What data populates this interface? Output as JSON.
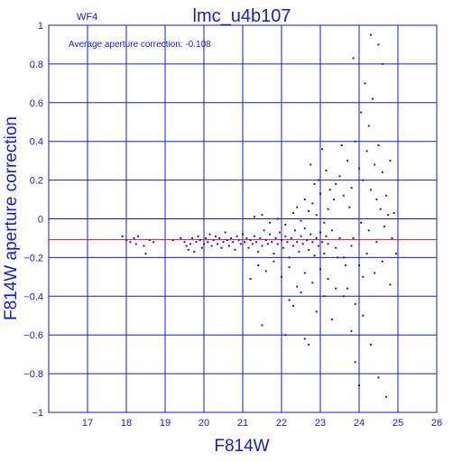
{
  "chart_data": {
    "type": "scatter",
    "title": "lmc_u4b107",
    "panel_label": "WF4",
    "annotation": "Average aperture correction: -0.108",
    "xlabel": "F814W",
    "ylabel": "F814W aperture correction",
    "xlim": [
      16,
      26
    ],
    "ylim": [
      -1,
      1
    ],
    "xticks": [
      17,
      18,
      19,
      20,
      21,
      22,
      23,
      24,
      25,
      26
    ],
    "yticks": [
      -1,
      -0.8,
      -0.6,
      -0.4,
      -0.2,
      0,
      0.2,
      0.4,
      0.6,
      0.8,
      1
    ],
    "xtick_labels": [
      "17",
      "18",
      "19",
      "20",
      "21",
      "22",
      "23",
      "24",
      "25",
      "26"
    ],
    "ytick_labels": [
      "−1",
      "−0.8",
      "−0.6",
      "−0.4",
      "−0.2",
      "0",
      "0.2",
      "0.4",
      "0.6",
      "0.8",
      "1"
    ],
    "grid": true,
    "reference_line": {
      "y": -0.108,
      "color": "#cc2222"
    },
    "point_color": "#1a1acd",
    "axis_color": "#1a1acd",
    "points": [
      [
        17.9,
        -0.09
      ],
      [
        18.0,
        -0.11
      ],
      [
        18.1,
        -0.12
      ],
      [
        18.2,
        -0.1
      ],
      [
        18.25,
        -0.13
      ],
      [
        18.3,
        -0.09
      ],
      [
        18.45,
        -0.14
      ],
      [
        18.5,
        -0.18
      ],
      [
        18.6,
        -0.11
      ],
      [
        18.7,
        -0.12
      ],
      [
        19.2,
        -0.11
      ],
      [
        19.4,
        -0.1
      ],
      [
        19.5,
        -0.12
      ],
      [
        19.55,
        -0.14
      ],
      [
        19.6,
        -0.16
      ],
      [
        19.65,
        -0.13
      ],
      [
        19.7,
        -0.1
      ],
      [
        19.75,
        -0.17
      ],
      [
        19.8,
        -0.12
      ],
      [
        19.85,
        -0.09
      ],
      [
        19.9,
        -0.11
      ],
      [
        19.95,
        -0.15
      ],
      [
        20.0,
        -0.13
      ],
      [
        20.05,
        -0.1
      ],
      [
        20.1,
        -0.12
      ],
      [
        20.15,
        -0.08
      ],
      [
        20.2,
        -0.14
      ],
      [
        20.25,
        -0.11
      ],
      [
        20.3,
        -0.09
      ],
      [
        20.35,
        -0.13
      ],
      [
        20.4,
        -0.1
      ],
      [
        20.45,
        -0.15
      ],
      [
        20.5,
        -0.12
      ],
      [
        20.55,
        -0.07
      ],
      [
        20.6,
        -0.11
      ],
      [
        20.65,
        -0.14
      ],
      [
        20.7,
        -0.1
      ],
      [
        20.75,
        -0.12
      ],
      [
        20.8,
        -0.16
      ],
      [
        20.85,
        -0.09
      ],
      [
        20.9,
        -0.11
      ],
      [
        20.95,
        -0.13
      ],
      [
        21.0,
        -0.08
      ],
      [
        21.05,
        -0.12
      ],
      [
        21.1,
        -0.1
      ],
      [
        21.15,
        -0.15
      ],
      [
        21.2,
        -0.11
      ],
      [
        21.25,
        -0.13
      ],
      [
        21.3,
        -0.09
      ],
      [
        21.35,
        -0.12
      ],
      [
        21.4,
        -0.17
      ],
      [
        21.45,
        -0.1
      ],
      [
        21.5,
        -0.14
      ],
      [
        21.55,
        -0.06
      ],
      [
        21.6,
        -0.11
      ],
      [
        21.65,
        -0.13
      ],
      [
        21.7,
        -0.08
      ],
      [
        21.75,
        -0.12
      ],
      [
        21.8,
        -0.18
      ],
      [
        21.85,
        -0.1
      ],
      [
        21.9,
        -0.13
      ],
      [
        21.95,
        -0.07
      ],
      [
        22.0,
        -0.11
      ],
      [
        22.05,
        -0.15
      ],
      [
        22.1,
        -0.09
      ],
      [
        22.15,
        -0.12
      ],
      [
        22.2,
        -0.2
      ],
      [
        22.25,
        -0.1
      ],
      [
        22.3,
        -0.14
      ],
      [
        22.35,
        -0.06
      ],
      [
        22.4,
        -0.12
      ],
      [
        22.45,
        -0.17
      ],
      [
        22.5,
        -0.09
      ],
      [
        22.55,
        -0.13
      ],
      [
        22.6,
        -0.05
      ],
      [
        22.65,
        -0.11
      ],
      [
        22.7,
        -0.16
      ],
      [
        22.75,
        -0.08
      ],
      [
        22.8,
        -0.12
      ],
      [
        22.85,
        -0.19
      ],
      [
        22.9,
        -0.1
      ],
      [
        22.95,
        -0.14
      ],
      [
        23.0,
        -0.07
      ],
      [
        23.05,
        -0.12
      ],
      [
        23.1,
        -0.18
      ],
      [
        23.15,
        -0.09
      ],
      [
        23.2,
        -0.13
      ],
      [
        23.3,
        -0.06
      ],
      [
        23.4,
        -0.15
      ],
      [
        23.5,
        -0.1
      ],
      [
        21.3,
        0.01
      ],
      [
        21.5,
        0.02
      ],
      [
        21.7,
        -0.02
      ],
      [
        21.9,
        0.0
      ],
      [
        22.1,
        -0.03
      ],
      [
        22.3,
        0.03
      ],
      [
        22.5,
        -0.01
      ],
      [
        22.7,
        0.04
      ],
      [
        22.9,
        0.02
      ],
      [
        23.1,
        -0.02
      ],
      [
        21.4,
        -0.24
      ],
      [
        21.6,
        -0.27
      ],
      [
        21.8,
        -0.22
      ],
      [
        22.0,
        -0.3
      ],
      [
        22.2,
        -0.25
      ],
      [
        22.4,
        -0.35
      ],
      [
        22.6,
        -0.28
      ],
      [
        22.8,
        -0.33
      ],
      [
        23.0,
        -0.26
      ],
      [
        23.2,
        -0.31
      ],
      [
        21.2,
        -0.31
      ],
      [
        21.5,
        -0.55
      ],
      [
        22.1,
        -0.6
      ],
      [
        22.3,
        -0.45
      ],
      [
        22.6,
        -0.62
      ],
      [
        22.9,
        -0.48
      ],
      [
        23.3,
        -0.52
      ],
      [
        23.6,
        -0.4
      ],
      [
        23.8,
        -0.58
      ],
      [
        24.1,
        -0.5
      ],
      [
        22.4,
        0.06
      ],
      [
        22.6,
        0.1
      ],
      [
        22.8,
        0.08
      ],
      [
        23.0,
        0.13
      ],
      [
        23.2,
        0.05
      ],
      [
        23.4,
        0.18
      ],
      [
        23.5,
        0.22
      ],
      [
        23.6,
        0.12
      ],
      [
        23.7,
        0.3
      ],
      [
        23.8,
        0.16
      ],
      [
        23.9,
        0.4
      ],
      [
        24.0,
        0.26
      ],
      [
        24.05,
        0.55
      ],
      [
        24.1,
        0.2
      ],
      [
        24.15,
        0.7
      ],
      [
        24.2,
        0.35
      ],
      [
        24.25,
        0.48
      ],
      [
        24.3,
        0.15
      ],
      [
        24.35,
        0.62
      ],
      [
        24.4,
        0.28
      ],
      [
        24.45,
        0.1
      ],
      [
        24.5,
        0.38
      ],
      [
        24.55,
        0.05
      ],
      [
        24.6,
        0.24
      ],
      [
        24.7,
        0.12
      ],
      [
        24.8,
        0.3
      ],
      [
        23.85,
        0.83
      ],
      [
        24.5,
        0.9
      ],
      [
        24.6,
        0.8
      ],
      [
        24.3,
        0.95
      ],
      [
        23.55,
        0.38
      ],
      [
        23.75,
        0.06
      ],
      [
        24.05,
        -0.02
      ],
      [
        24.25,
        -0.06
      ],
      [
        24.45,
        -0.12
      ],
      [
        24.65,
        -0.04
      ],
      [
        24.75,
        0.02
      ],
      [
        24.85,
        -0.1
      ],
      [
        24.9,
        0.03
      ],
      [
        24.95,
        -0.18
      ],
      [
        23.6,
        -0.2
      ],
      [
        23.8,
        -0.14
      ],
      [
        24.0,
        -0.24
      ],
      [
        24.2,
        -0.18
      ],
      [
        24.4,
        -0.28
      ],
      [
        24.6,
        -0.22
      ],
      [
        24.8,
        -0.34
      ],
      [
        23.7,
        -0.36
      ],
      [
        23.9,
        -0.44
      ],
      [
        24.1,
        -0.3
      ],
      [
        22.2,
        -0.42
      ],
      [
        22.5,
        -0.38
      ],
      [
        23.1,
        -0.4
      ],
      [
        23.4,
        -0.36
      ],
      [
        24.3,
        -0.65
      ],
      [
        24.5,
        -0.82
      ],
      [
        24.7,
        -0.92
      ],
      [
        23.9,
        -0.74
      ],
      [
        24.0,
        -0.86
      ],
      [
        22.7,
        -0.65
      ],
      [
        23.45,
        -0.2
      ],
      [
        23.65,
        -0.24
      ],
      [
        23.85,
        -0.1
      ],
      [
        23.35,
        0.1
      ],
      [
        23.25,
        0.15
      ],
      [
        23.15,
        0.25
      ],
      [
        23.05,
        0.36
      ],
      [
        22.95,
        0.2
      ],
      [
        22.85,
        0.18
      ],
      [
        22.75,
        0.28
      ]
    ]
  }
}
